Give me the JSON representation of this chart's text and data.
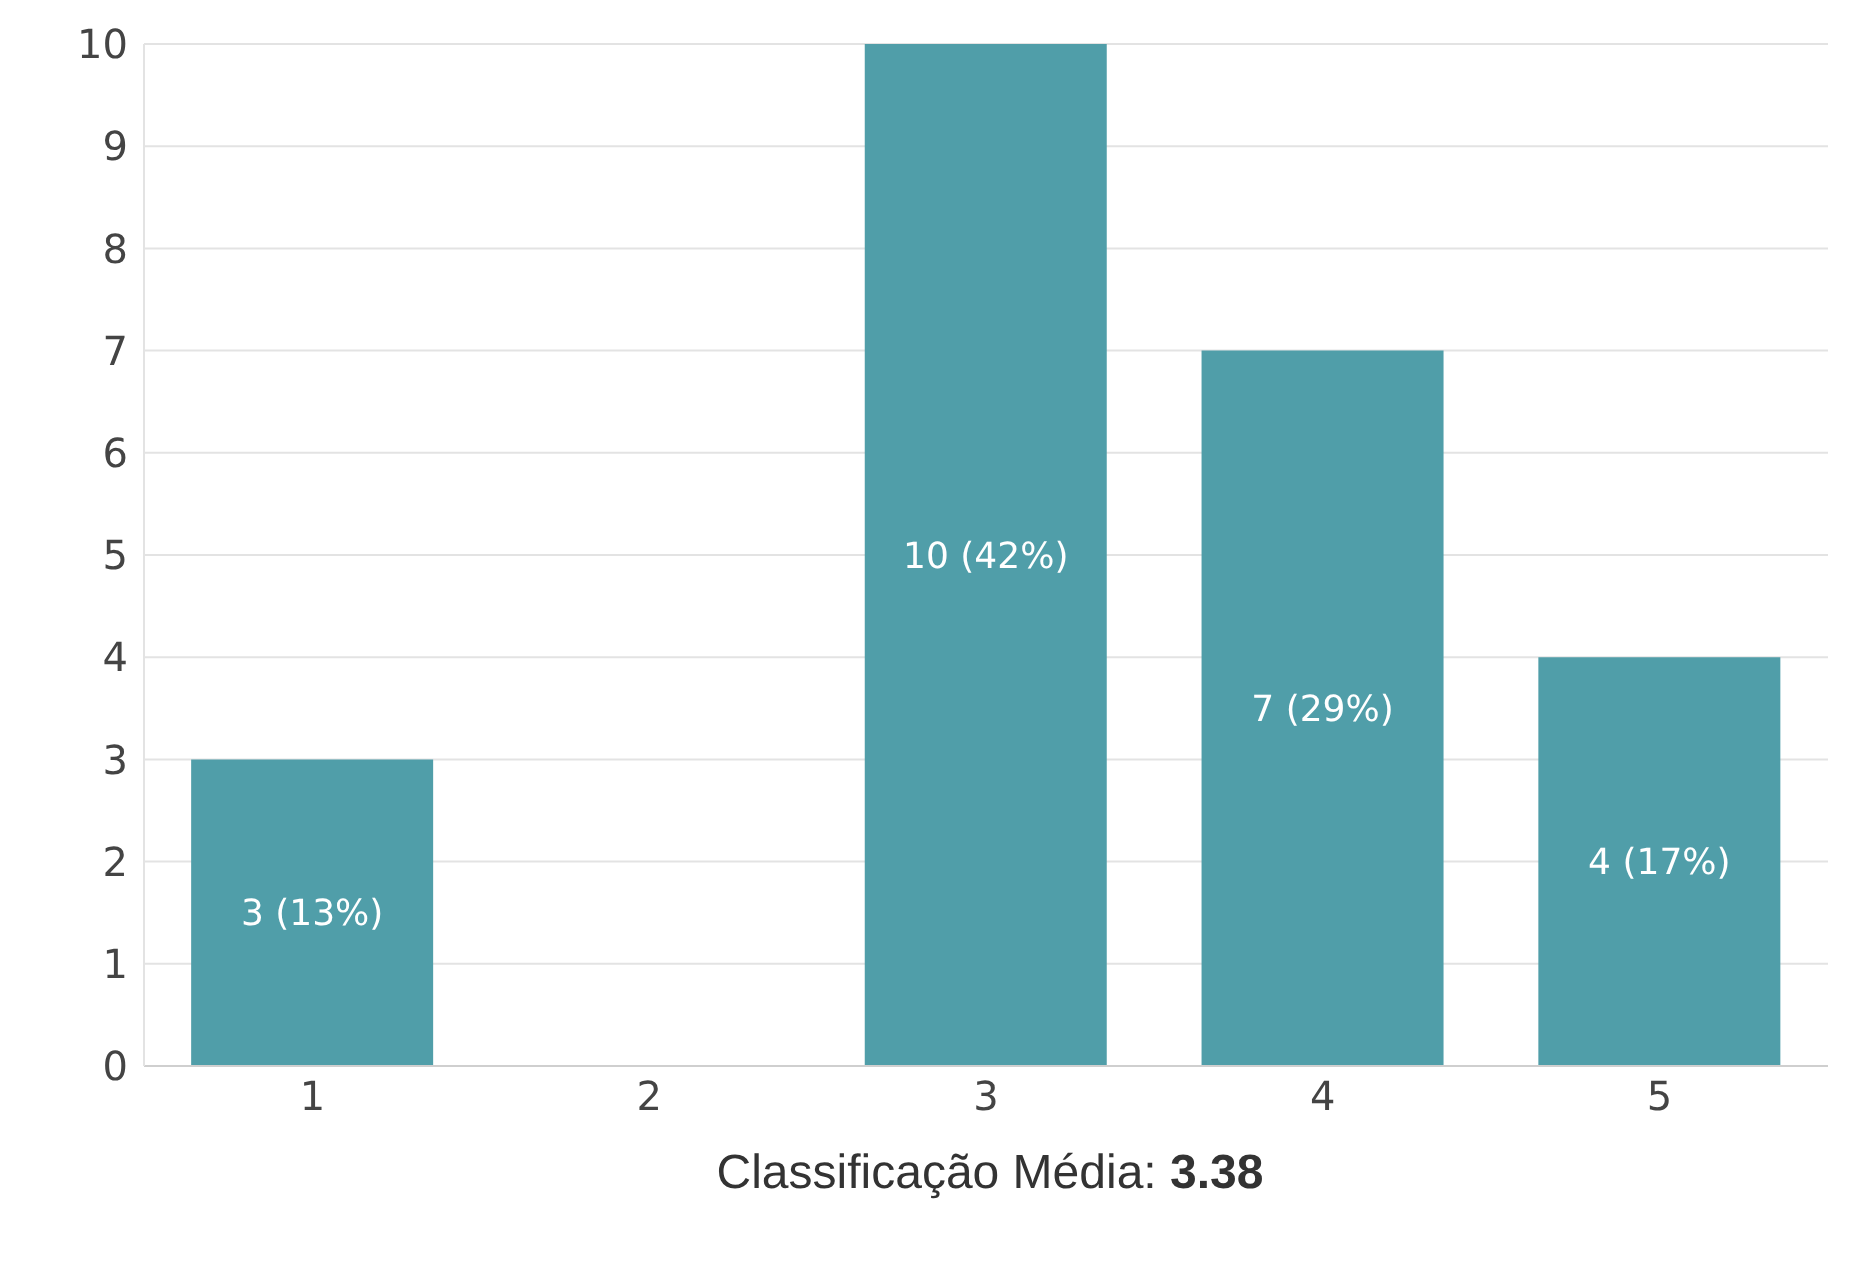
{
  "chart_data": {
    "type": "bar",
    "categories": [
      "1",
      "2",
      "3",
      "4",
      "5"
    ],
    "values": [
      3,
      0,
      10,
      7,
      4
    ],
    "value_labels": [
      "3 (13%)",
      null,
      "10 (42%)",
      "7 (29%)",
      "4 (17%)"
    ],
    "color": "#509ea9",
    "ylim": [
      0,
      10
    ],
    "yticks": [
      0,
      1,
      2,
      3,
      4,
      5,
      6,
      7,
      8,
      9,
      10
    ],
    "grid": "y",
    "annotations": [
      "Classificação Média: 3.38"
    ]
  }
}
